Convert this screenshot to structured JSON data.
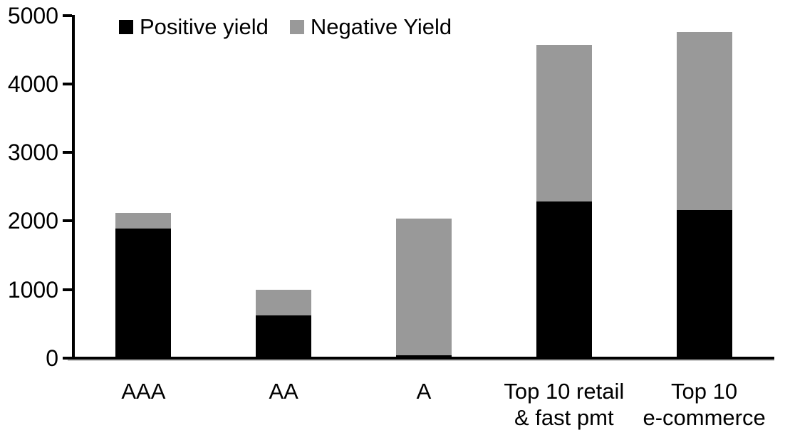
{
  "chart_data": {
    "type": "bar",
    "stacked": true,
    "title": "",
    "xlabel": "",
    "ylabel": "",
    "categories": [
      "AAA",
      "AA",
      "A",
      "Top 10 retail & fast pmt",
      "Top 10 e-commerce"
    ],
    "category_display_lines": [
      [
        "AAA"
      ],
      [
        "AA"
      ],
      [
        "A"
      ],
      [
        "Top 10 retail",
        "& fast pmt"
      ],
      [
        "Top 10",
        "e-commerce"
      ]
    ],
    "series": [
      {
        "name": "Positive yield",
        "color": "#000000",
        "values": [
          1890,
          620,
          45,
          2285,
          2155
        ]
      },
      {
        "name": "Negative Yield",
        "color": "#999999",
        "values": [
          230,
          380,
          1990,
          2280,
          2600
        ]
      }
    ],
    "ylim": [
      0,
      5000
    ],
    "yticks": [
      0,
      1000,
      2000,
      3000,
      4000,
      5000
    ],
    "grid": false,
    "legend_position": "top-left"
  },
  "colors": {
    "positive": "#000000",
    "negative": "#999999",
    "axis": "#000000",
    "background": "#ffffff"
  }
}
